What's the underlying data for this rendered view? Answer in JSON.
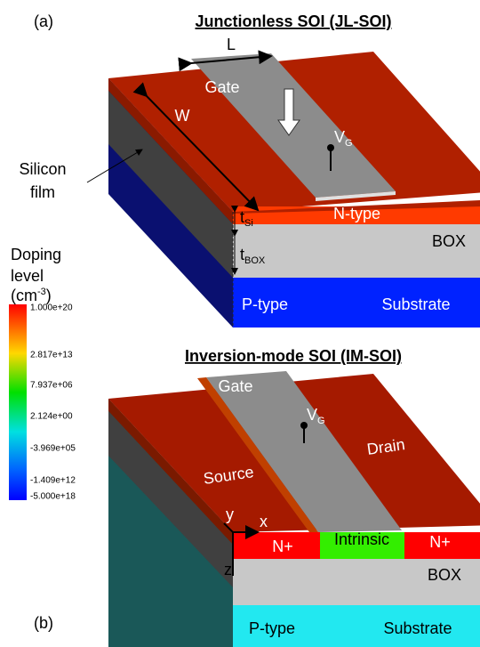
{
  "panel_a": {
    "label": "(a)",
    "title": "Junctionless SOI (JL-SOI)",
    "length": "L",
    "gate": "Gate",
    "width": "W",
    "vg": "V",
    "vg_sub": "G",
    "film_line1": "Silicon",
    "film_line2": "film",
    "tsi": "t",
    "tsi_sub": "Si",
    "ntype": "N-type",
    "box": "BOX",
    "tbox": "t",
    "tbox_sub": "BOX",
    "ptype": "P-type",
    "substrate": "Substrate"
  },
  "colorbar": {
    "title_line1": "Doping",
    "title_line2": "level",
    "unit_open": "(cm",
    "unit_sup": "-3",
    "unit_close": ")",
    "ticks": [
      "1.000e+20",
      "2.817e+13",
      "7.937e+06",
      "2.124e+00",
      "-3.969e+05",
      "-1.409e+12",
      "-5.000e+18"
    ]
  },
  "panel_b": {
    "label": "(b)",
    "title": "Inversion-mode SOI (IM-SOI)",
    "gate": "Gate",
    "vg": "V",
    "vg_sub": "G",
    "source": "Source",
    "drain": "Drain",
    "axis_y": "y",
    "axis_x": "x",
    "axis_z": "z",
    "n_plus_left": "N+",
    "intrinsic": "Intrinsic",
    "n_plus_right": "N+",
    "box": "BOX",
    "ptype": "P-type",
    "substrate": "Substrate"
  }
}
